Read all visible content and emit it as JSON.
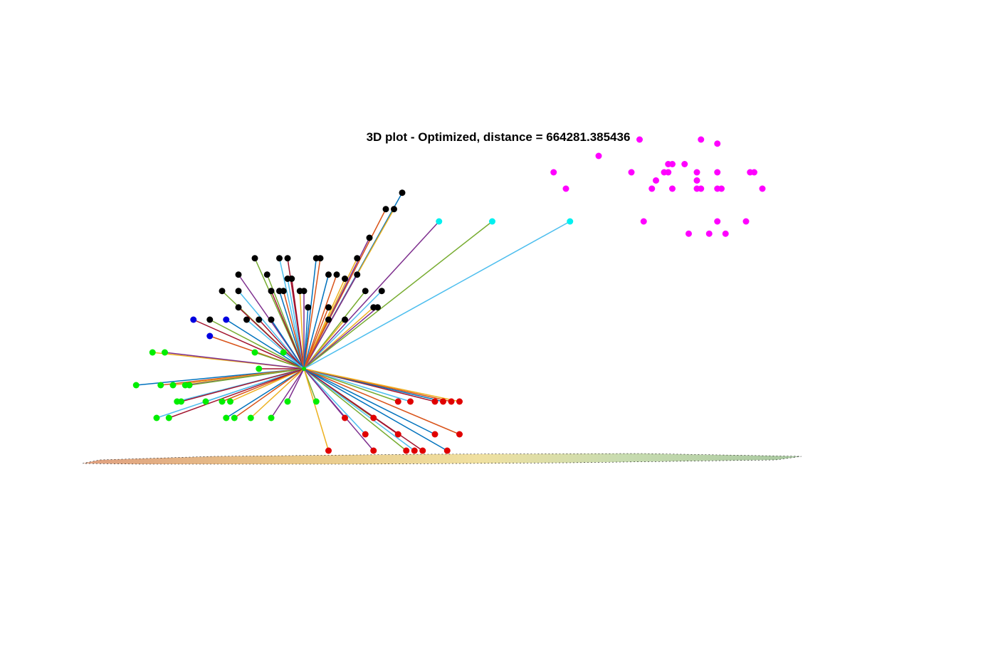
{
  "figure": {
    "title": "3D plot - Optimized, distance = 664281.385436"
  },
  "colors": {
    "hub_marker": "#00e000",
    "clusters": {
      "black": "#000000",
      "cyan": "#00f0f0",
      "blue": "#0000e0",
      "green": "#00ee00",
      "red": "#e00000",
      "magenta": "#ff00ff"
    },
    "line_palette": [
      "#0072bd",
      "#d95319",
      "#edb120",
      "#7e2f8e",
      "#77ac30",
      "#4dbeee",
      "#a2142f"
    ],
    "ground_surface": [
      "#e0a080",
      "#e8c88a",
      "#f0e0a0",
      "#c8dcb0",
      "#a8c8a0"
    ]
  },
  "chart_data": {
    "type": "scatter",
    "projection": "3d",
    "title": "3D plot - Optimized, distance = 664281.385436",
    "xlabel": "",
    "ylabel": "",
    "zlabel": "",
    "grid": false,
    "axes_visible": false,
    "hub": {
      "x": 0,
      "y": 0
    },
    "series": [
      {
        "color": "black",
        "connected_to_hub": true,
        "points": [
          [
            2.4,
            4.3
          ],
          [
            2.0,
            3.9
          ],
          [
            2.2,
            3.9
          ],
          [
            1.6,
            3.2
          ],
          [
            -1.2,
            2.7
          ],
          [
            -0.6,
            2.7
          ],
          [
            -0.4,
            2.7
          ],
          [
            0.3,
            2.7
          ],
          [
            0.4,
            2.7
          ],
          [
            1.3,
            2.7
          ],
          [
            -1.6,
            2.3
          ],
          [
            -0.9,
            2.3
          ],
          [
            -0.4,
            2.2
          ],
          [
            -0.3,
            2.2
          ],
          [
            0.6,
            2.3
          ],
          [
            0.8,
            2.3
          ],
          [
            1.0,
            2.2
          ],
          [
            1.3,
            2.3
          ],
          [
            -2.0,
            1.9
          ],
          [
            -1.6,
            1.9
          ],
          [
            -0.8,
            1.9
          ],
          [
            -0.6,
            1.9
          ],
          [
            -0.5,
            1.9
          ],
          [
            -0.1,
            1.9
          ],
          [
            0.0,
            1.9
          ],
          [
            1.5,
            1.9
          ],
          [
            1.9,
            1.9
          ],
          [
            -1.6,
            1.5
          ],
          [
            0.1,
            1.5
          ],
          [
            0.6,
            1.5
          ],
          [
            1.7,
            1.5
          ],
          [
            1.8,
            1.5
          ],
          [
            -2.3,
            1.2
          ],
          [
            -1.4,
            1.2
          ],
          [
            -1.1,
            1.2
          ],
          [
            -0.8,
            1.2
          ],
          [
            0.6,
            1.2
          ],
          [
            1.0,
            1.2
          ]
        ]
      },
      {
        "color": "cyan",
        "connected_to_hub": true,
        "points": [
          [
            3.3,
            3.6
          ],
          [
            4.6,
            3.6
          ],
          [
            6.5,
            3.6
          ]
        ]
      },
      {
        "color": "blue",
        "connected_to_hub": true,
        "points": [
          [
            -2.7,
            1.2
          ],
          [
            -1.9,
            1.2
          ],
          [
            -2.3,
            0.8
          ]
        ]
      },
      {
        "color": "green",
        "connected_to_hub": true,
        "points": [
          [
            -3.7,
            0.4
          ],
          [
            -3.4,
            0.4
          ],
          [
            -1.2,
            0.4
          ],
          [
            -0.5,
            0.4
          ],
          [
            -1.1,
            0.0
          ],
          [
            -4.1,
            -0.4
          ],
          [
            -3.5,
            -0.4
          ],
          [
            -3.2,
            -0.4
          ],
          [
            -2.9,
            -0.4
          ],
          [
            -2.8,
            -0.4
          ],
          [
            -3.1,
            -0.8
          ],
          [
            -3.0,
            -0.8
          ],
          [
            -2.4,
            -0.8
          ],
          [
            -2.0,
            -0.8
          ],
          [
            -1.8,
            -0.8
          ],
          [
            -0.4,
            -0.8
          ],
          [
            0.3,
            -0.8
          ],
          [
            -3.6,
            -1.2
          ],
          [
            -3.3,
            -1.2
          ],
          [
            -1.9,
            -1.2
          ],
          [
            -1.7,
            -1.2
          ],
          [
            -1.3,
            -1.2
          ],
          [
            -0.8,
            -1.2
          ]
        ]
      },
      {
        "color": "red",
        "connected_to_hub": true,
        "points": [
          [
            2.3,
            -0.8
          ],
          [
            2.6,
            -0.8
          ],
          [
            3.2,
            -0.8
          ],
          [
            3.4,
            -0.8
          ],
          [
            3.6,
            -0.8
          ],
          [
            3.8,
            -0.8
          ],
          [
            1.0,
            -1.2
          ],
          [
            1.7,
            -1.2
          ],
          [
            1.5,
            -1.6
          ],
          [
            2.3,
            -1.6
          ],
          [
            3.2,
            -1.6
          ],
          [
            3.8,
            -1.6
          ],
          [
            0.6,
            -2.0
          ],
          [
            1.7,
            -2.0
          ],
          [
            2.5,
            -2.0
          ],
          [
            2.7,
            -2.0
          ],
          [
            2.9,
            -2.0
          ],
          [
            3.5,
            -2.0
          ]
        ]
      },
      {
        "color": "magenta",
        "connected_to_hub": false,
        "points": [
          [
            8.2,
            5.6
          ],
          [
            9.7,
            5.6
          ],
          [
            10.1,
            5.5
          ],
          [
            7.2,
            5.2
          ],
          [
            8.9,
            5.0
          ],
          [
            9.0,
            5.0
          ],
          [
            9.3,
            5.0
          ],
          [
            6.1,
            4.8
          ],
          [
            8.0,
            4.8
          ],
          [
            8.8,
            4.8
          ],
          [
            8.9,
            4.8
          ],
          [
            9.6,
            4.8
          ],
          [
            10.1,
            4.8
          ],
          [
            10.9,
            4.8
          ],
          [
            11.0,
            4.8
          ],
          [
            8.6,
            4.6
          ],
          [
            9.6,
            4.6
          ],
          [
            6.4,
            4.4
          ],
          [
            8.5,
            4.4
          ],
          [
            9.0,
            4.4
          ],
          [
            9.6,
            4.4
          ],
          [
            9.7,
            4.4
          ],
          [
            10.1,
            4.4
          ],
          [
            10.2,
            4.4
          ],
          [
            11.2,
            4.4
          ],
          [
            8.3,
            3.6
          ],
          [
            10.1,
            3.6
          ],
          [
            10.8,
            3.6
          ],
          [
            9.4,
            3.3
          ],
          [
            9.9,
            3.3
          ],
          [
            10.3,
            3.3
          ]
        ]
      }
    ]
  }
}
